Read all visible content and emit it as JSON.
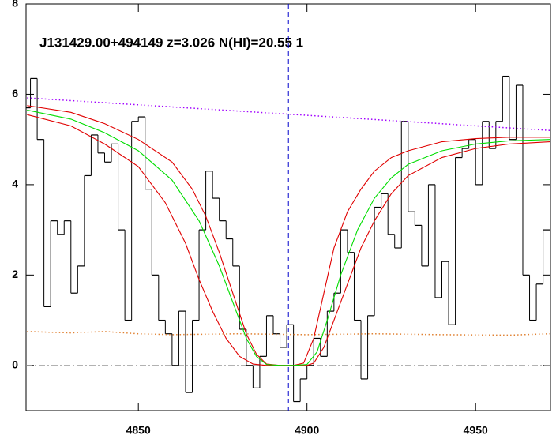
{
  "chart_data": {
    "type": "line",
    "title": "J131429.00+494149 z=3.026 N(HI)=20.55 1",
    "xlim": [
      4816.7,
      4972.2
    ],
    "xticks": [
      4850,
      4900,
      4950
    ],
    "ylim": [
      -1,
      8
    ],
    "yticks": [
      0,
      2,
      4,
      6,
      8
    ],
    "vline": {
      "x": 4894.5,
      "color": "#0000cc",
      "line_style": "dashed"
    },
    "hline": {
      "y": 0,
      "color": "#999999",
      "line_style": "dashdot"
    },
    "series": [
      {
        "color": "#000000",
        "line_style": "step",
        "bin_width": 2,
        "x": [
          4817,
          4819,
          4821,
          4823,
          4825,
          4827,
          4829,
          4831,
          4833,
          4835,
          4837,
          4839,
          4841,
          4843,
          4845,
          4847,
          4849,
          4851,
          4853,
          4855,
          4857,
          4859,
          4861,
          4863,
          4865,
          4867,
          4869,
          4871,
          4873,
          4875,
          4877,
          4879,
          4881,
          4883,
          4885,
          4887,
          4889,
          4891,
          4893,
          4895,
          4897,
          4899,
          4901,
          4903,
          4905,
          4907,
          4909,
          4911,
          4913,
          4915,
          4917,
          4919,
          4921,
          4923,
          4925,
          4927,
          4929,
          4931,
          4933,
          4935,
          4937,
          4939,
          4941,
          4943,
          4945,
          4947,
          4949,
          4951,
          4953,
          4955,
          4957,
          4959,
          4961,
          4963,
          4965,
          4967,
          4969,
          4971
        ],
        "values": [
          5.7,
          6.35,
          5.0,
          1.3,
          3.2,
          2.9,
          3.2,
          1.6,
          2.2,
          4.2,
          5.1,
          4.7,
          4.5,
          4.9,
          3.0,
          1.0,
          5.4,
          5.5,
          3.9,
          2.0,
          1.0,
          0.7,
          0.0,
          1.2,
          -0.6,
          1.0,
          3.0,
          4.3,
          3.7,
          3.2,
          2.8,
          2.2,
          0.8,
          0.0,
          -0.5,
          0.2,
          1.1,
          0.7,
          0.4,
          0.9,
          -0.8,
          -0.3,
          0.0,
          0.6,
          0.2,
          1.2,
          1.6,
          3.0,
          2.5,
          1.0,
          -0.3,
          1.1,
          3.5,
          3.8,
          2.9,
          2.6,
          5.4,
          3.4,
          3.1,
          2.2,
          4.0,
          1.5,
          2.3,
          0.9,
          4.6,
          4.8,
          5.0,
          4.0,
          5.4,
          4.8,
          5.4,
          6.4,
          5.0,
          6.2,
          2.0,
          1.0,
          1.8,
          3.0
        ]
      },
      {
        "color": "#e08030",
        "line_style": "dotted",
        "x": [
          4817,
          4830,
          4840,
          4850,
          4860,
          4880,
          4900,
          4920,
          4940,
          4960,
          4972
        ],
        "values": [
          0.75,
          0.72,
          0.75,
          0.7,
          0.68,
          0.7,
          0.68,
          0.7,
          0.68,
          0.67,
          0.7
        ]
      },
      {
        "color": "#a000ff",
        "line_style": "dotted",
        "x": [
          4817,
          4972
        ],
        "values": [
          5.92,
          5.2
        ]
      },
      {
        "color": "#e00000",
        "line_style": "solid",
        "x": [
          4817,
          4830,
          4840,
          4850,
          4860,
          4866,
          4870,
          4874,
          4878,
          4882,
          4885,
          4888,
          4892,
          4896,
          4899,
          4902,
          4905,
          4908,
          4912,
          4916,
          4920,
          4925,
          4930,
          4940,
          4950,
          4960,
          4972
        ],
        "values": [
          5.75,
          5.6,
          5.35,
          5.0,
          4.5,
          3.9,
          3.3,
          2.5,
          1.6,
          0.7,
          0.25,
          0.03,
          0,
          0,
          0.05,
          0.6,
          1.6,
          2.6,
          3.4,
          3.9,
          4.3,
          4.6,
          4.75,
          4.95,
          5.02,
          5.05,
          5.05
        ]
      },
      {
        "color": "#e00000",
        "line_style": "solid",
        "x": [
          4817,
          4830,
          4840,
          4850,
          4858,
          4864,
          4868,
          4872,
          4876,
          4880,
          4884,
          4888,
          4896,
          4900,
          4902,
          4905,
          4908,
          4912,
          4916,
          4920,
          4925,
          4930,
          4940,
          4950,
          4960,
          4972
        ],
        "values": [
          5.55,
          5.3,
          4.9,
          4.4,
          3.6,
          2.7,
          1.9,
          1.2,
          0.6,
          0.2,
          0.03,
          0,
          0,
          0,
          0.05,
          0.4,
          1.0,
          1.8,
          2.6,
          3.2,
          3.8,
          4.2,
          4.6,
          4.8,
          4.9,
          4.95
        ]
      },
      {
        "color": "#00dd00",
        "line_style": "solid",
        "x": [
          4817,
          4830,
          4840,
          4850,
          4860,
          4868,
          4874,
          4878,
          4882,
          4885,
          4888,
          4892,
          4896,
          4900,
          4903,
          4906,
          4910,
          4915,
          4920,
          4925,
          4930,
          4940,
          4950,
          4960,
          4972
        ],
        "values": [
          5.65,
          5.45,
          5.15,
          4.75,
          4.1,
          3.2,
          2.2,
          1.4,
          0.6,
          0.2,
          0.02,
          0,
          0,
          0.02,
          0.3,
          1.0,
          2.0,
          3.0,
          3.7,
          4.15,
          4.45,
          4.75,
          4.9,
          4.97,
          5.0
        ]
      }
    ]
  }
}
